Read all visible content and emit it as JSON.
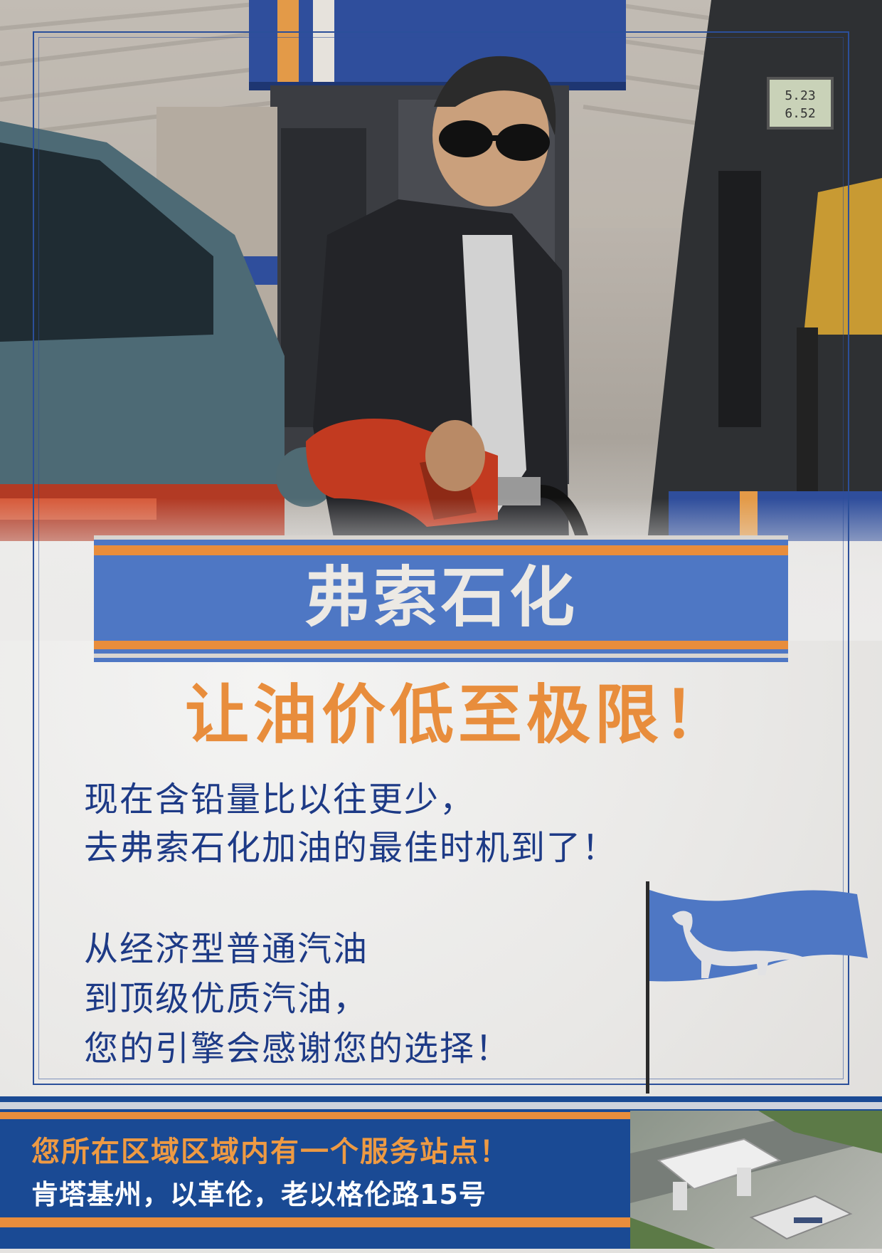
{
  "poster": {
    "brand": "弗索石化",
    "slogan": "让油价低至极限！",
    "paragraph1": [
      "现在含铅量比以往更少，",
      "去弗索石化加油的最佳时机到了！"
    ],
    "paragraph2": [
      "从经济型普通汽油",
      "到顶级优质汽油，",
      "您的引擎会感谢您的选择！"
    ]
  },
  "pump_display": {
    "line1": "5.23",
    "line2": "6.52"
  },
  "footer": {
    "headline": "您所在区域区域内有一个服务站点！",
    "address": "肯塔基州，以革伦，老以格伦路15号"
  },
  "colors": {
    "brand_blue": "#4e77c4",
    "navy": "#1a4a94",
    "orange": "#e88d3c",
    "text_blue": "#1d3a86",
    "paper": "#ecebea"
  },
  "icons": {
    "flag": "dinosaur-flag-icon",
    "nozzle": "fuel-nozzle-icon"
  }
}
